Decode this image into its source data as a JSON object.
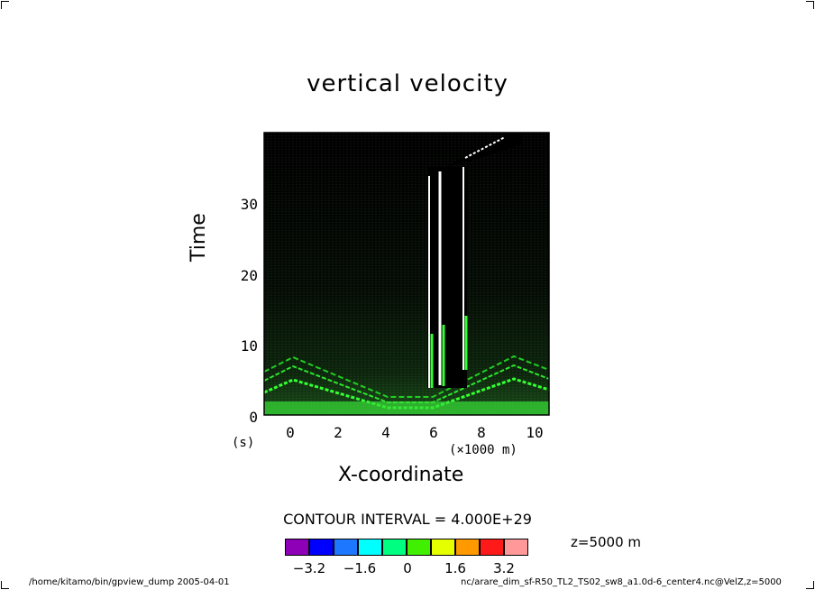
{
  "chart_data": {
    "type": "contour",
    "title": "vertical velocity",
    "xlabel": "X-coordinate",
    "ylabel": "Time",
    "x_units": "(×1000 m)",
    "y_units": "(s)",
    "x_ticks": [
      "0",
      "2",
      "4",
      "6",
      "8",
      "10"
    ],
    "y_ticks": [
      "0",
      "10",
      "20",
      "30"
    ],
    "xlim": [
      -1,
      11
    ],
    "ylim": [
      0,
      40
    ],
    "contour_interval_text": "CONTOUR INTERVAL = 4.000E+29",
    "level_label": "z=5000 m",
    "colorbar": {
      "colors": [
        "#8d00b8",
        "#0000ff",
        "#1e78ff",
        "#00ffff",
        "#00ff80",
        "#40f000",
        "#e6ff00",
        "#ff9900",
        "#ff1a1a",
        "#ff9999"
      ],
      "labels": [
        "−3.2",
        "−1.6",
        "0",
        "1.6",
        "3.2"
      ]
    },
    "features": [
      {
        "name": "updraft-column-left",
        "x": 6.0,
        "t_start": 4,
        "t_end": 34
      },
      {
        "name": "updraft-column-center",
        "x": 6.5,
        "t_start": 4,
        "t_end": 35
      },
      {
        "name": "updraft-column-right",
        "x": 7.4,
        "t_start": 7,
        "t_end": 36
      }
    ]
  },
  "footer": {
    "left": "/home/kitamo/bin/gpview_dump  2005-04-01",
    "right": "nc/arare_dim_sf-R50_TL2_TS02_sw8_a1.0d-6_center4.nc@VelZ,z=5000"
  }
}
